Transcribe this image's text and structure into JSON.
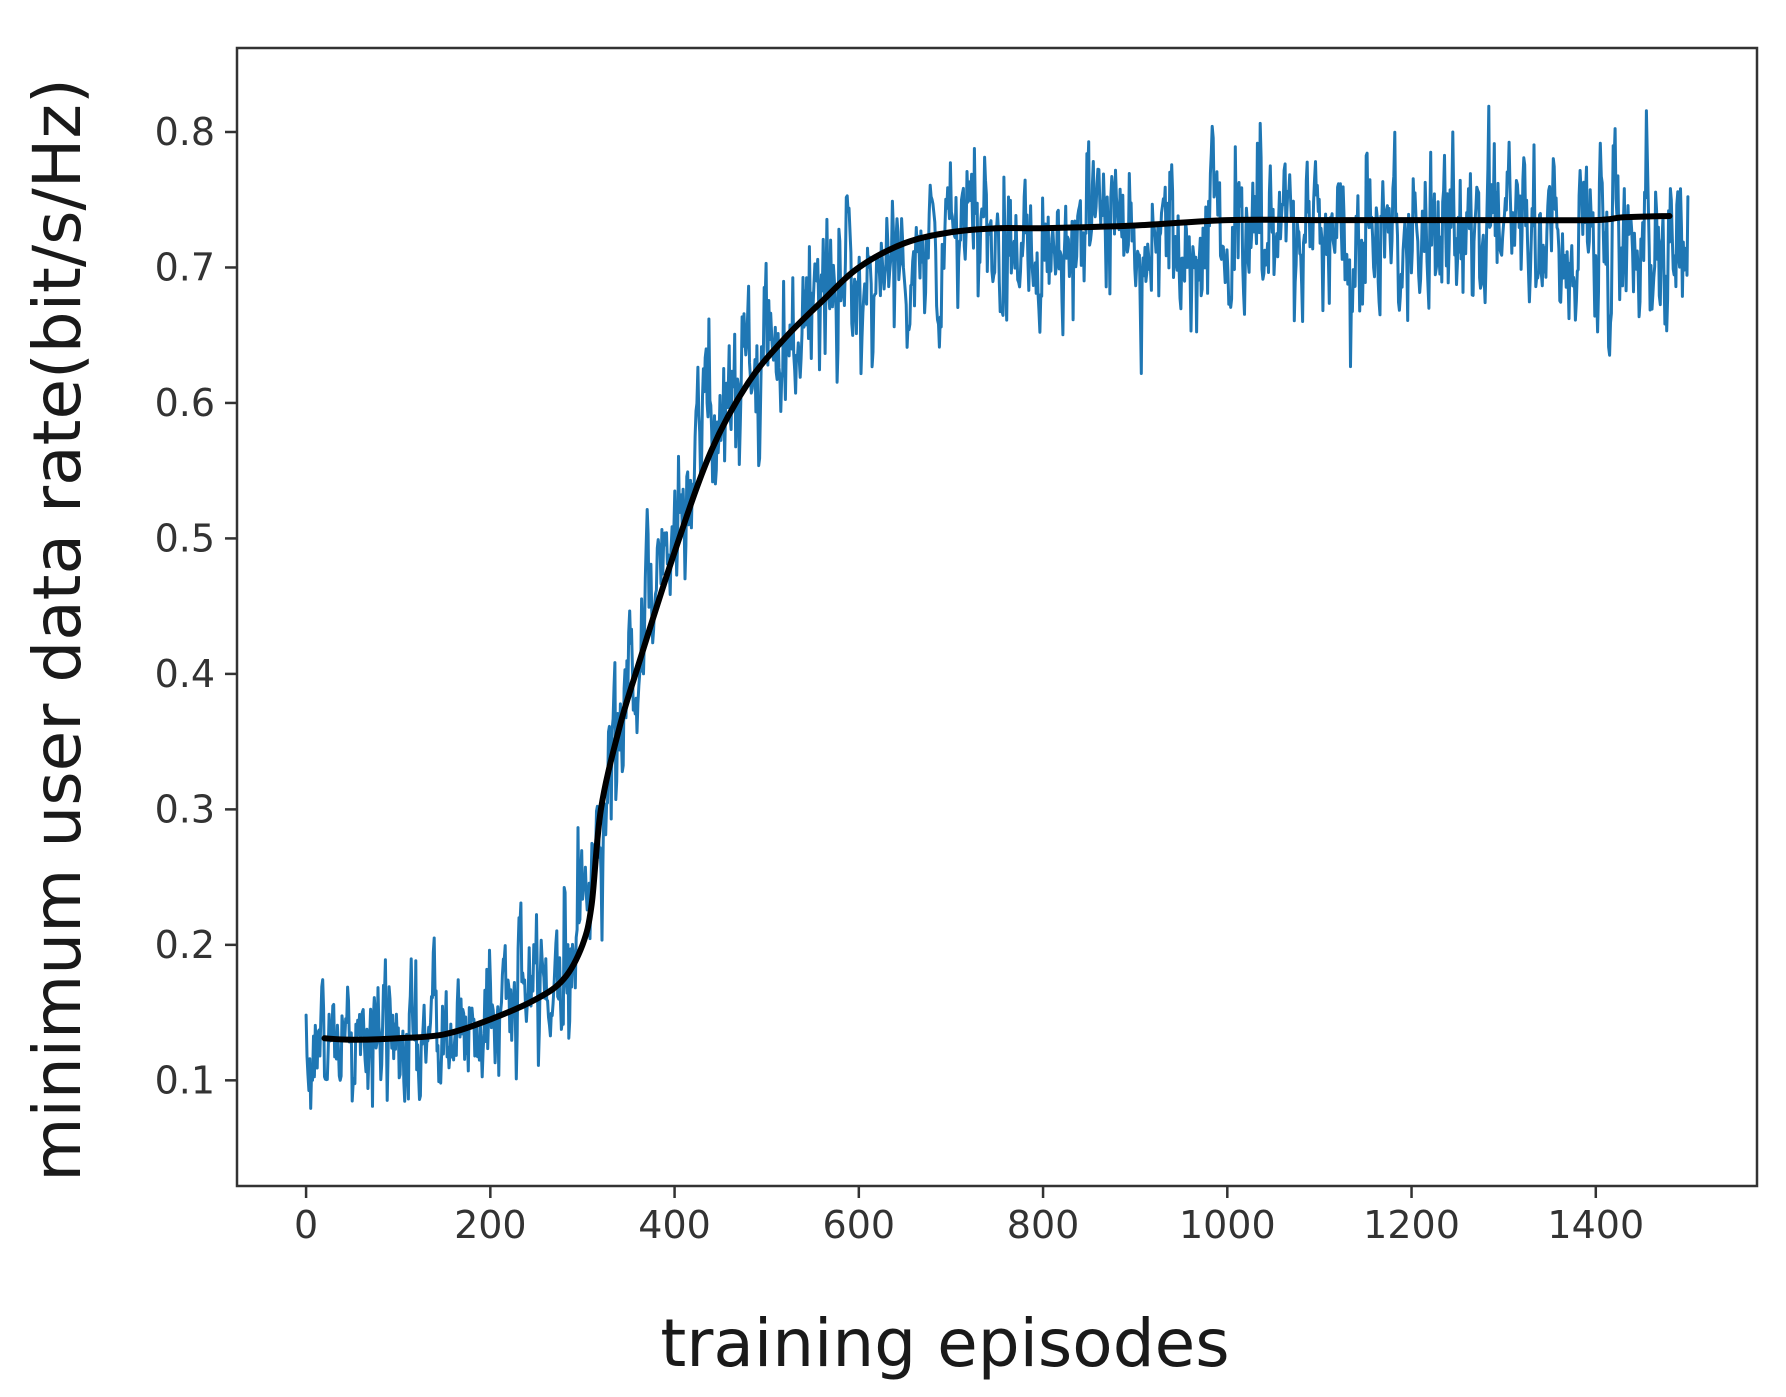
{
  "chart_data": {
    "type": "line",
    "title": "",
    "xlabel": "training episodes",
    "ylabel": "minimum user data rate(bit/s/Hz)",
    "xlim": [
      -75,
      1575
    ],
    "ylim": [
      0.022,
      0.862
    ],
    "x_ticks": [
      0,
      200,
      400,
      600,
      800,
      1000,
      1200,
      1400
    ],
    "y_ticks": [
      0.1,
      0.2,
      0.3,
      0.4,
      0.5,
      0.6,
      0.7,
      0.8
    ],
    "x_tick_labels": [
      "0",
      "200",
      "400",
      "600",
      "800",
      "1000",
      "1200",
      "1400"
    ],
    "y_tick_labels": [
      "0.1",
      "0.2",
      "0.3",
      "0.4",
      "0.5",
      "0.6",
      "0.7",
      "0.8"
    ],
    "grid": false,
    "legend": "none",
    "series": [
      {
        "color": "#1f77b4",
        "style": "noisy",
        "x_range": [
          0,
          1500
        ],
        "points": 1500,
        "trend": [
          [
            0,
            0.128
          ],
          [
            100,
            0.13
          ],
          [
            150,
            0.13
          ],
          [
            200,
            0.15
          ],
          [
            250,
            0.17
          ],
          [
            280,
            0.185
          ],
          [
            310,
            0.25
          ],
          [
            330,
            0.34
          ],
          [
            360,
            0.42
          ],
          [
            400,
            0.52
          ],
          [
            440,
            0.59
          ],
          [
            480,
            0.625
          ],
          [
            530,
            0.66
          ],
          [
            580,
            0.69
          ],
          [
            620,
            0.7
          ],
          [
            680,
            0.712
          ],
          [
            740,
            0.725
          ],
          [
            1500,
            0.726
          ]
        ],
        "noise_sd": [
          [
            0,
            0.026
          ],
          [
            280,
            0.03
          ],
          [
            300,
            0.034
          ],
          [
            480,
            0.032
          ],
          [
            680,
            0.03
          ],
          [
            700,
            0.032
          ],
          [
            1500,
            0.032
          ]
        ],
        "range": [
          0.058,
          0.832
        ]
      },
      {
        "color": "#000000",
        "style": "smooth",
        "x": [
          20,
          50,
          100,
          150,
          200,
          250,
          280,
          300,
          310,
          320,
          340,
          360,
          400,
          440,
          480,
          520,
          560,
          600,
          650,
          700,
          750,
          800,
          900,
          1000,
          1100,
          1200,
          1300,
          1400,
          1430,
          1480
        ],
        "values": [
          0.131,
          0.13,
          0.131,
          0.134,
          0.145,
          0.16,
          0.175,
          0.2,
          0.23,
          0.3,
          0.36,
          0.405,
          0.49,
          0.565,
          0.615,
          0.648,
          0.675,
          0.7,
          0.718,
          0.726,
          0.729,
          0.729,
          0.731,
          0.735,
          0.735,
          0.735,
          0.735,
          0.735,
          0.737,
          0.738
        ]
      }
    ]
  }
}
